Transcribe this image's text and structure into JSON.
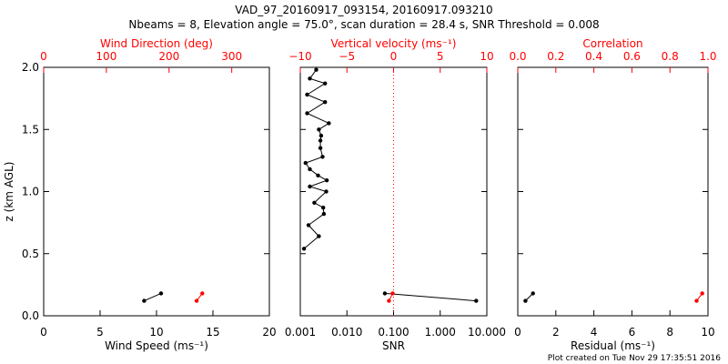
{
  "title_line1": "VAD_97_20160917_093154, 20160917.093210",
  "title_line2": "Nbeams = 8, Elevation angle = 75.0°, scan duration = 28.4 s, SNR Threshold = 0.008",
  "footer": "Plot created on Tue Nov 29 17:35:51 2016",
  "colors": {
    "primary": "#000000",
    "secondary": "#ff0000"
  },
  "chart_data": [
    {
      "type": "line",
      "ylabel": "z (km AGL)",
      "ylim": [
        0,
        2
      ],
      "yticks": [
        "0.0",
        "0.5",
        "1.0",
        "1.5",
        "2.0"
      ],
      "bottom_axis": {
        "label": "Wind Speed (ms⁻¹)",
        "range": [
          0,
          20
        ],
        "ticks": [
          "0",
          "5",
          "10",
          "15",
          "20"
        ]
      },
      "top_axis": {
        "label": "Wind Direction (deg)",
        "range": [
          0,
          360
        ],
        "ticks": [
          "0",
          "100",
          "200",
          "300"
        ]
      },
      "series": [
        {
          "color": "#000000",
          "axis": "bottom",
          "points": [
            [
              8.9,
              0.12
            ],
            [
              10.4,
              0.18
            ]
          ]
        },
        {
          "color": "#ff0000",
          "axis": "top",
          "points": [
            [
              244,
              0.12
            ],
            [
              253,
              0.18
            ]
          ]
        }
      ]
    },
    {
      "type": "line",
      "ylim": [
        0,
        2
      ],
      "bottom_axis": {
        "label": "SNR",
        "scale": "log",
        "range": [
          0.001,
          10
        ],
        "ticks": [
          "0.001",
          "0.010",
          "0.100",
          "1.000",
          "10.000"
        ]
      },
      "top_axis": {
        "label": "Vertical velocity (ms⁻¹)",
        "range": [
          -10,
          10
        ],
        "ticks": [
          "−10",
          "−5",
          "0",
          "5",
          "10"
        ]
      },
      "reference_line": {
        "axis": "top",
        "value": 0,
        "style": "dotted",
        "color": "#ff0000"
      },
      "series": [
        {
          "color": "#000000",
          "axis": "bottom",
          "points": [
            [
              0.0012,
              0.54
            ],
            [
              0.0025,
              0.64
            ],
            [
              0.0015,
              0.73
            ],
            [
              0.0032,
              0.82
            ],
            [
              0.0031,
              0.87
            ],
            [
              0.002,
              0.91
            ],
            [
              0.0036,
              1.0
            ],
            [
              0.0016,
              1.04
            ],
            [
              0.0037,
              1.09
            ],
            [
              0.0024,
              1.13
            ],
            [
              0.0016,
              1.18
            ],
            [
              0.0013,
              1.23
            ],
            [
              0.003,
              1.28
            ],
            [
              0.0027,
              1.35
            ],
            [
              0.0027,
              1.41
            ],
            [
              0.0028,
              1.45
            ],
            [
              0.0025,
              1.5
            ],
            [
              0.0041,
              1.55
            ],
            [
              0.0014,
              1.63
            ],
            [
              0.0034,
              1.72
            ],
            [
              0.0014,
              1.78
            ],
            [
              0.0034,
              1.87
            ],
            [
              0.0016,
              1.91
            ],
            [
              0.0022,
              1.98
            ]
          ]
        },
        {
          "color": "#000000",
          "axis": "bottom",
          "points": [
            [
              0.065,
              0.18
            ],
            [
              5.9,
              0.12
            ]
          ]
        },
        {
          "color": "#ff0000",
          "axis": "top",
          "points": [
            [
              -0.5,
              0.12
            ],
            [
              -0.1,
              0.18
            ]
          ]
        }
      ]
    },
    {
      "type": "line",
      "ylim": [
        0,
        2
      ],
      "bottom_axis": {
        "label": "Residual (ms⁻¹)",
        "range": [
          0,
          10
        ],
        "ticks": [
          "0",
          "2",
          "4",
          "6",
          "8",
          "10"
        ]
      },
      "top_axis": {
        "label": "Correlation",
        "range": [
          0,
          1
        ],
        "ticks": [
          "0.0",
          "0.2",
          "0.4",
          "0.6",
          "0.8",
          "1.0"
        ]
      },
      "series": [
        {
          "color": "#000000",
          "axis": "bottom",
          "points": [
            [
              0.4,
              0.12
            ],
            [
              0.8,
              0.18
            ]
          ]
        },
        {
          "color": "#ff0000",
          "axis": "top",
          "points": [
            [
              0.94,
              0.12
            ],
            [
              0.97,
              0.18
            ]
          ]
        }
      ]
    }
  ]
}
